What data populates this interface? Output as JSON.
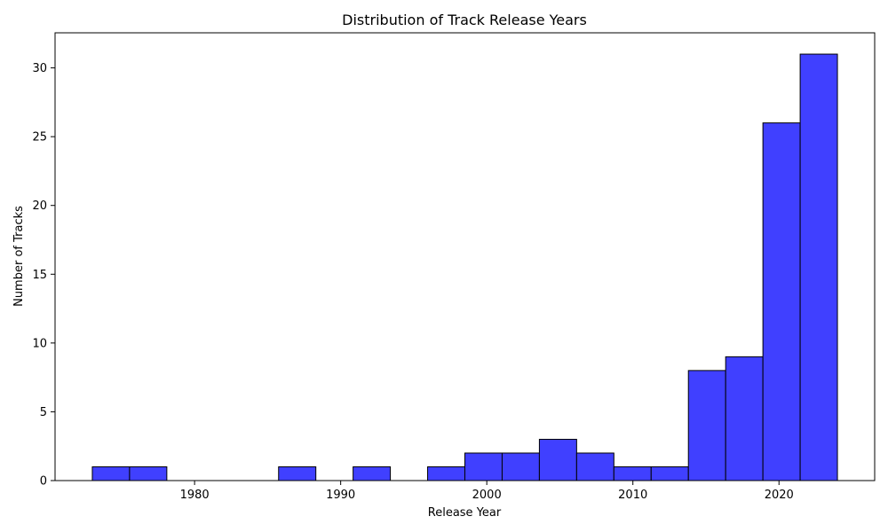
{
  "chart_data": {
    "type": "bar",
    "title": "Distribution of Track Release Years",
    "xlabel": "Release Year",
    "ylabel": "Number of Tracks",
    "bin_edges": [
      1973.0,
      1975.55,
      1978.1,
      1980.65,
      1983.2,
      1985.75,
      1988.3,
      1990.85,
      1993.4,
      1995.95,
      1998.5,
      2001.05,
      2003.6,
      2006.15,
      2008.7,
      2011.25,
      2013.8,
      2016.35,
      2018.9,
      2021.45,
      2024.0
    ],
    "values": [
      1,
      1,
      0,
      0,
      0,
      1,
      0,
      1,
      0,
      1,
      2,
      2,
      3,
      2,
      1,
      1,
      8,
      9,
      26,
      31
    ],
    "xlim": [
      1970.45,
      2026.55
    ],
    "ylim": [
      0,
      32.55
    ],
    "xticks": [
      1980,
      1990,
      2000,
      2010,
      2020
    ],
    "yticks": [
      0,
      5,
      10,
      15,
      20,
      25,
      30
    ],
    "bar_color": "#4040ff",
    "bar_edge_color": "#000000",
    "grid": false
  }
}
